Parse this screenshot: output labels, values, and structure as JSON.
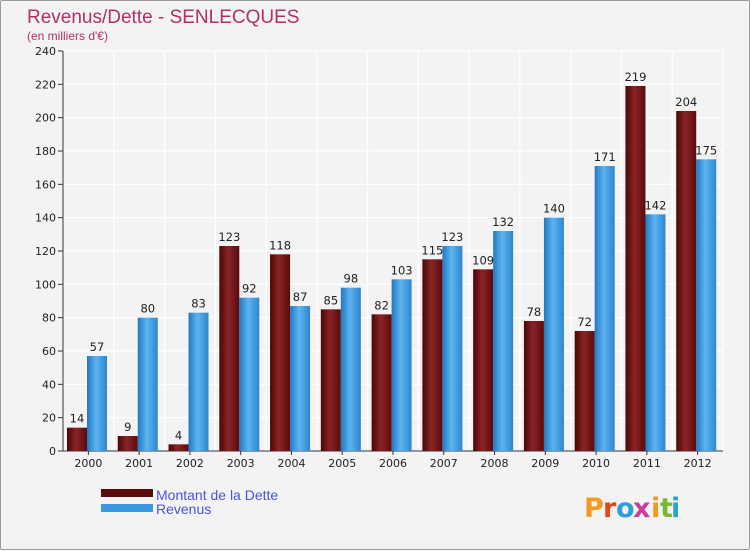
{
  "colors": {
    "debt": "#7a1416",
    "revenue": "#3a9ae0",
    "title": "#b0306a",
    "legend_text": "#4a55d8"
  },
  "chart_data": {
    "type": "bar",
    "title": "Revenus/Dette - SENLECQUES",
    "subtitle": "(en milliers d'€)",
    "categories": [
      "2000",
      "2001",
      "2002",
      "2003",
      "2004",
      "2005",
      "2006",
      "2007",
      "2008",
      "2009",
      "2010",
      "2011",
      "2012"
    ],
    "series": [
      {
        "name": "Montant de la Dette",
        "values": [
          14,
          9,
          4,
          123,
          118,
          85,
          82,
          115,
          109,
          78,
          72,
          219,
          204
        ]
      },
      {
        "name": "Revenus",
        "values": [
          57,
          80,
          83,
          92,
          87,
          98,
          103,
          123,
          132,
          140,
          171,
          142,
          175
        ]
      }
    ],
    "yticks": [
      0,
      20,
      40,
      60,
      80,
      100,
      120,
      140,
      160,
      180,
      200,
      220,
      240
    ],
    "ylim": [
      0,
      240
    ],
    "grid": true,
    "legend_position": "bottom-left"
  },
  "logo": {
    "letters": [
      "P",
      "r",
      "o",
      "x",
      "i",
      "t",
      "i"
    ],
    "colors": [
      "#f39a1e",
      "#e0491b",
      "#2aa1d9",
      "#c83e9a",
      "#f39a1e",
      "#78b833",
      "#2aa1d9"
    ]
  }
}
